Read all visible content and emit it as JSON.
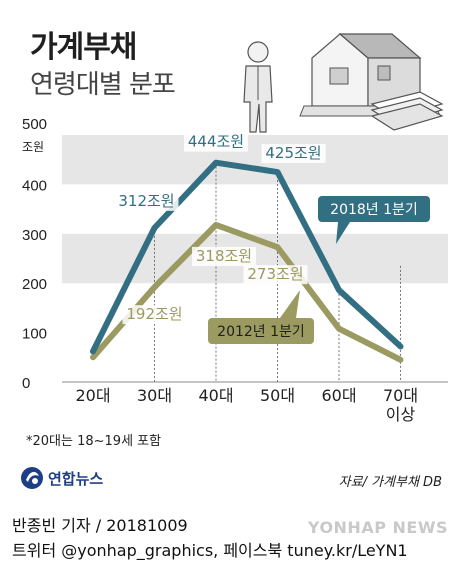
{
  "title": "가계부채",
  "subtitle": "연령대별 분포",
  "footnote": "*20대는 18~19세 포함",
  "source": "자료/ 가계부채 DB",
  "logo": "연합뉴스",
  "credit_line1": "반종빈 기자 / 20181009",
  "credit_line2": "트위터 @yonhap_graphics, 페이스북 tuney.kr/LeYN1",
  "watermark": "YONHAP NEWS",
  "colors": {
    "series_2018": "#336f82",
    "series_2012": "#9b9a61",
    "band": "#e6e6e6"
  },
  "chart_data": {
    "type": "line",
    "categories": [
      "20대",
      "30대",
      "40대",
      "50대",
      "60대",
      "70대 이상"
    ],
    "y_unit": "조원",
    "ylim": [
      0,
      500
    ],
    "yticks": [
      0,
      100,
      200,
      300,
      400,
      500
    ],
    "series": [
      {
        "name": "2018년 1분기",
        "values": [
          62,
          312,
          444,
          425,
          186,
          72
        ],
        "labels": [
          "",
          "312조원",
          "444조원",
          "425조원",
          "",
          ""
        ]
      },
      {
        "name": "2012년 1분기",
        "values": [
          50,
          192,
          318,
          273,
          108,
          45
        ],
        "labels": [
          "",
          "192조원",
          "318조원",
          "273조원",
          "",
          ""
        ]
      }
    ]
  }
}
